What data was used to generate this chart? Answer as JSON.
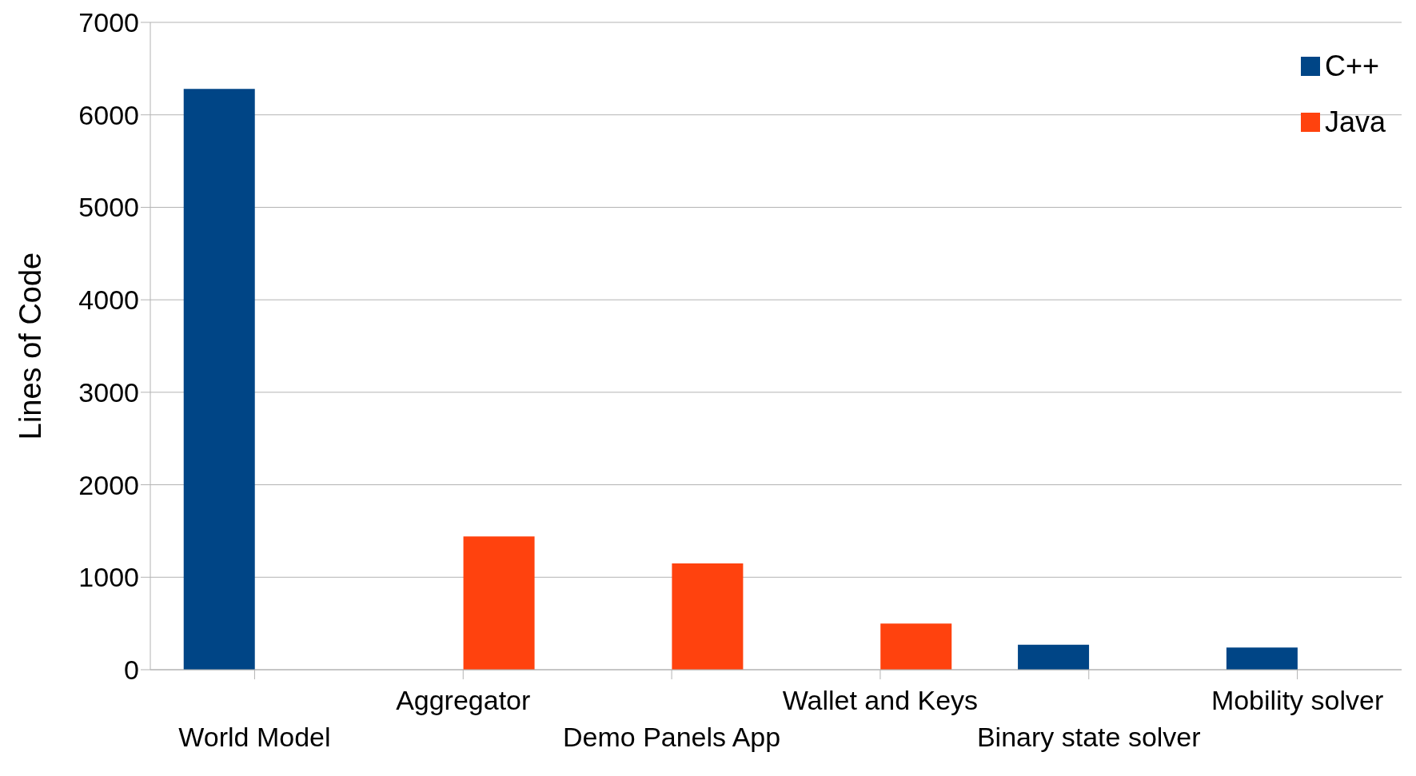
{
  "chart_data": {
    "type": "bar",
    "ylabel": "Lines of Code",
    "categories": [
      "World Model",
      "Aggregator",
      "Demo Panels App",
      "Wallet and Keys",
      "Binary state solver",
      "Mobility solver"
    ],
    "series": [
      {
        "name": "C++",
        "color": "#004586",
        "values": [
          6280,
          null,
          null,
          null,
          270,
          240
        ]
      },
      {
        "name": "Java",
        "color": "#ff420e",
        "values": [
          null,
          1440,
          1150,
          500,
          null,
          null
        ]
      }
    ],
    "ylim": [
      0,
      7000
    ],
    "yticks": [
      0,
      1000,
      2000,
      3000,
      4000,
      5000,
      6000,
      7000
    ],
    "grid": "y",
    "legend": "top right"
  }
}
